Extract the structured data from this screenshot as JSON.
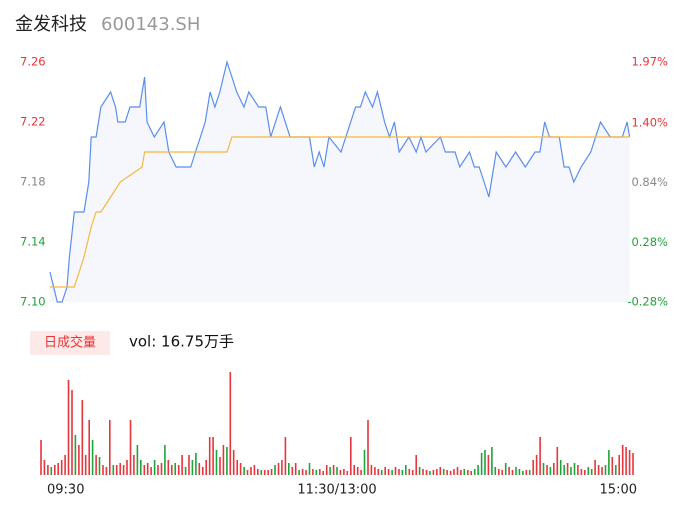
{
  "chart_data": [
    {
      "type": "line",
      "title": "金发科技",
      "subtitle": "600143.SH",
      "xlim": [
        0,
        240
      ],
      "ylim": [
        7.1,
        7.26
      ],
      "yticks": [
        7.26,
        7.22,
        7.18,
        7.14,
        {
          "value": 7.1,
          "label": "7.10"
        }
      ],
      "ytick_colors": [
        "#e8353b",
        "#e8353b",
        "#888888",
        "#1fa33b",
        "#1fa33b"
      ],
      "y2lim": [
        -0.28,
        1.97
      ],
      "y2ticks": [
        {
          "value": 1.97,
          "label": "1.97%"
        },
        {
          "value": 1.4,
          "label": "1.40%"
        },
        {
          "value": 0.84,
          "label": "0.84%"
        },
        {
          "value": 0.28,
          "label": "0.28%"
        },
        {
          "value": -0.28,
          "label": "-0.28%"
        }
      ],
      "series": [
        {
          "color": "#5b8def",
          "area_color": "#f5f7fc",
          "x": [
            0,
            3,
            5,
            7,
            8,
            10,
            12,
            14,
            16,
            17,
            19,
            21,
            25,
            27,
            28,
            31,
            33,
            37,
            39,
            40,
            43,
            47,
            49,
            52,
            58,
            60,
            62,
            64,
            66,
            68,
            70,
            73,
            75,
            77,
            80,
            82,
            86,
            89,
            91,
            93,
            95,
            99,
            103,
            107,
            109,
            111,
            113,
            115,
            120,
            122,
            124,
            126,
            128,
            130,
            133,
            135,
            138,
            140,
            142,
            144,
            148,
            151,
            153,
            155,
            161,
            163,
            167,
            169,
            173,
            175,
            177,
            179,
            181,
            184,
            188,
            192,
            196,
            200,
            202,
            204,
            206,
            210,
            212,
            214,
            216,
            219,
            223,
            225,
            227,
            231,
            236,
            238,
            239
          ],
          "values": [
            7.12,
            7.1,
            7.1,
            7.11,
            7.13,
            7.16,
            7.16,
            7.16,
            7.18,
            7.21,
            7.21,
            7.23,
            7.24,
            7.23,
            7.22,
            7.22,
            7.23,
            7.23,
            7.25,
            7.22,
            7.21,
            7.22,
            7.2,
            7.19,
            7.19,
            7.2,
            7.21,
            7.22,
            7.24,
            7.23,
            7.24,
            7.26,
            7.25,
            7.24,
            7.23,
            7.24,
            7.23,
            7.23,
            7.21,
            7.22,
            7.23,
            7.21,
            7.21,
            7.21,
            7.19,
            7.2,
            7.19,
            7.21,
            7.2,
            7.21,
            7.22,
            7.23,
            7.23,
            7.24,
            7.23,
            7.24,
            7.22,
            7.21,
            7.22,
            7.2,
            7.21,
            7.2,
            7.21,
            7.2,
            7.21,
            7.2,
            7.2,
            7.19,
            7.2,
            7.19,
            7.19,
            7.18,
            7.17,
            7.2,
            7.19,
            7.2,
            7.19,
            7.2,
            7.2,
            7.22,
            7.21,
            7.21,
            7.19,
            7.19,
            7.18,
            7.19,
            7.2,
            7.21,
            7.22,
            7.21,
            7.21,
            7.22,
            7.21
          ]
        },
        {
          "color": "#f5b83d",
          "x": [
            0,
            10,
            14,
            17,
            19,
            21,
            25,
            29,
            38,
            39,
            73,
            75,
            239
          ],
          "values": [
            7.11,
            7.11,
            7.13,
            7.15,
            7.16,
            7.16,
            7.17,
            7.18,
            7.19,
            7.2,
            7.2,
            7.21,
            7.21
          ]
        }
      ]
    },
    {
      "type": "bar",
      "title": "日成交量",
      "subtitle": "vol: 16.75万手",
      "xlim": [
        0,
        240
      ],
      "xticks": [
        {
          "value": 0,
          "label": "09:30"
        },
        {
          "value": 120,
          "label": "11:30/13:00"
        },
        {
          "value": 240,
          "label": "15:00"
        }
      ],
      "ylim": [
        0,
        4120
      ],
      "series": [
        {
          "color": "#e8353b",
          "values": [
            1400,
            600,
            400,
            null,
            400,
            480,
            600,
            800,
            3800,
            3400,
            null,
            1200,
            3000,
            800,
            2200,
            null,
            800,
            null,
            400,
            320,
            2200,
            null,
            400,
            480,
            400,
            600,
            2200,
            800,
            null,
            null,
            400,
            480,
            320,
            null,
            400,
            480,
            null,
            600,
            400,
            null,
            400,
            800,
            null,
            800,
            null,
            null,
            480,
            320,
            600,
            1520,
            1520,
            null,
            720,
            1200,
            null,
            4120,
            1000,
            600,
            480,
            null,
            200,
            320,
            400,
            240,
            null,
            200,
            200,
            240,
            null,
            480,
            600,
            1520,
            null,
            320,
            480,
            null,
            240,
            200,
            null,
            240,
            null,
            240,
            160,
            400,
            null,
            400,
            null,
            200,
            240,
            160,
            1520,
            400,
            320,
            200,
            null,
            2200,
            400,
            320,
            240,
            null,
            320,
            240,
            null,
            320,
            240,
            null,
            null,
            240,
            200,
            800,
            null,
            240,
            200,
            null,
            200,
            240,
            320,
            null,
            200,
            160,
            240,
            320,
            200,
            null,
            200,
            160,
            null,
            null,
            null,
            null,
            800,
            null,
            null,
            240,
            200,
            null,
            320,
            200,
            null,
            null,
            null,
            200,
            null,
            600,
            800,
            1520,
            null,
            400,
            null,
            480,
            1120,
            null,
            null,
            480,
            null,
            null,
            400,
            240,
            200,
            null,
            null,
            600,
            400,
            320,
            null,
            null,
            720,
            null,
            800,
            1200,
            1120,
            1000,
            880
          ]
        },
        {
          "color": "#1fa33b",
          "values": [
            null,
            null,
            null,
            320,
            null,
            null,
            null,
            null,
            null,
            null,
            1600,
            null,
            null,
            null,
            null,
            1400,
            null,
            720,
            null,
            null,
            null,
            400,
            null,
            null,
            null,
            null,
            null,
            null,
            1200,
            600,
            null,
            null,
            null,
            600,
            null,
            null,
            1200,
            null,
            null,
            480,
            null,
            null,
            320,
            null,
            600,
            880,
            null,
            null,
            null,
            null,
            null,
            1000,
            null,
            null,
            1120,
            null,
            null,
            null,
            null,
            320,
            null,
            null,
            null,
            null,
            200,
            null,
            null,
            null,
            400,
            null,
            null,
            null,
            480,
            null,
            null,
            200,
            null,
            null,
            480,
            null,
            200,
            null,
            null,
            null,
            320,
            null,
            320,
            null,
            null,
            null,
            null,
            null,
            null,
            null,
            1000,
            null,
            null,
            null,
            null,
            200,
            null,
            null,
            200,
            null,
            null,
            200,
            400,
            null,
            null,
            null,
            320,
            null,
            null,
            160,
            null,
            null,
            null,
            240,
            null,
            null,
            null,
            null,
            null,
            240,
            null,
            null,
            240,
            400,
            880,
            1000,
            null,
            1120,
            320,
            null,
            null,
            480,
            null,
            null,
            320,
            240,
            160,
            null,
            200,
            null,
            null,
            null,
            480,
            null,
            320,
            null,
            null,
            600,
            400,
            null,
            320,
            480,
            null,
            null,
            null,
            320,
            240,
            null,
            null,
            null,
            400,
            1000,
            null,
            400,
            null,
            null,
            null,
            null,
            null
          ]
        }
      ]
    }
  ]
}
